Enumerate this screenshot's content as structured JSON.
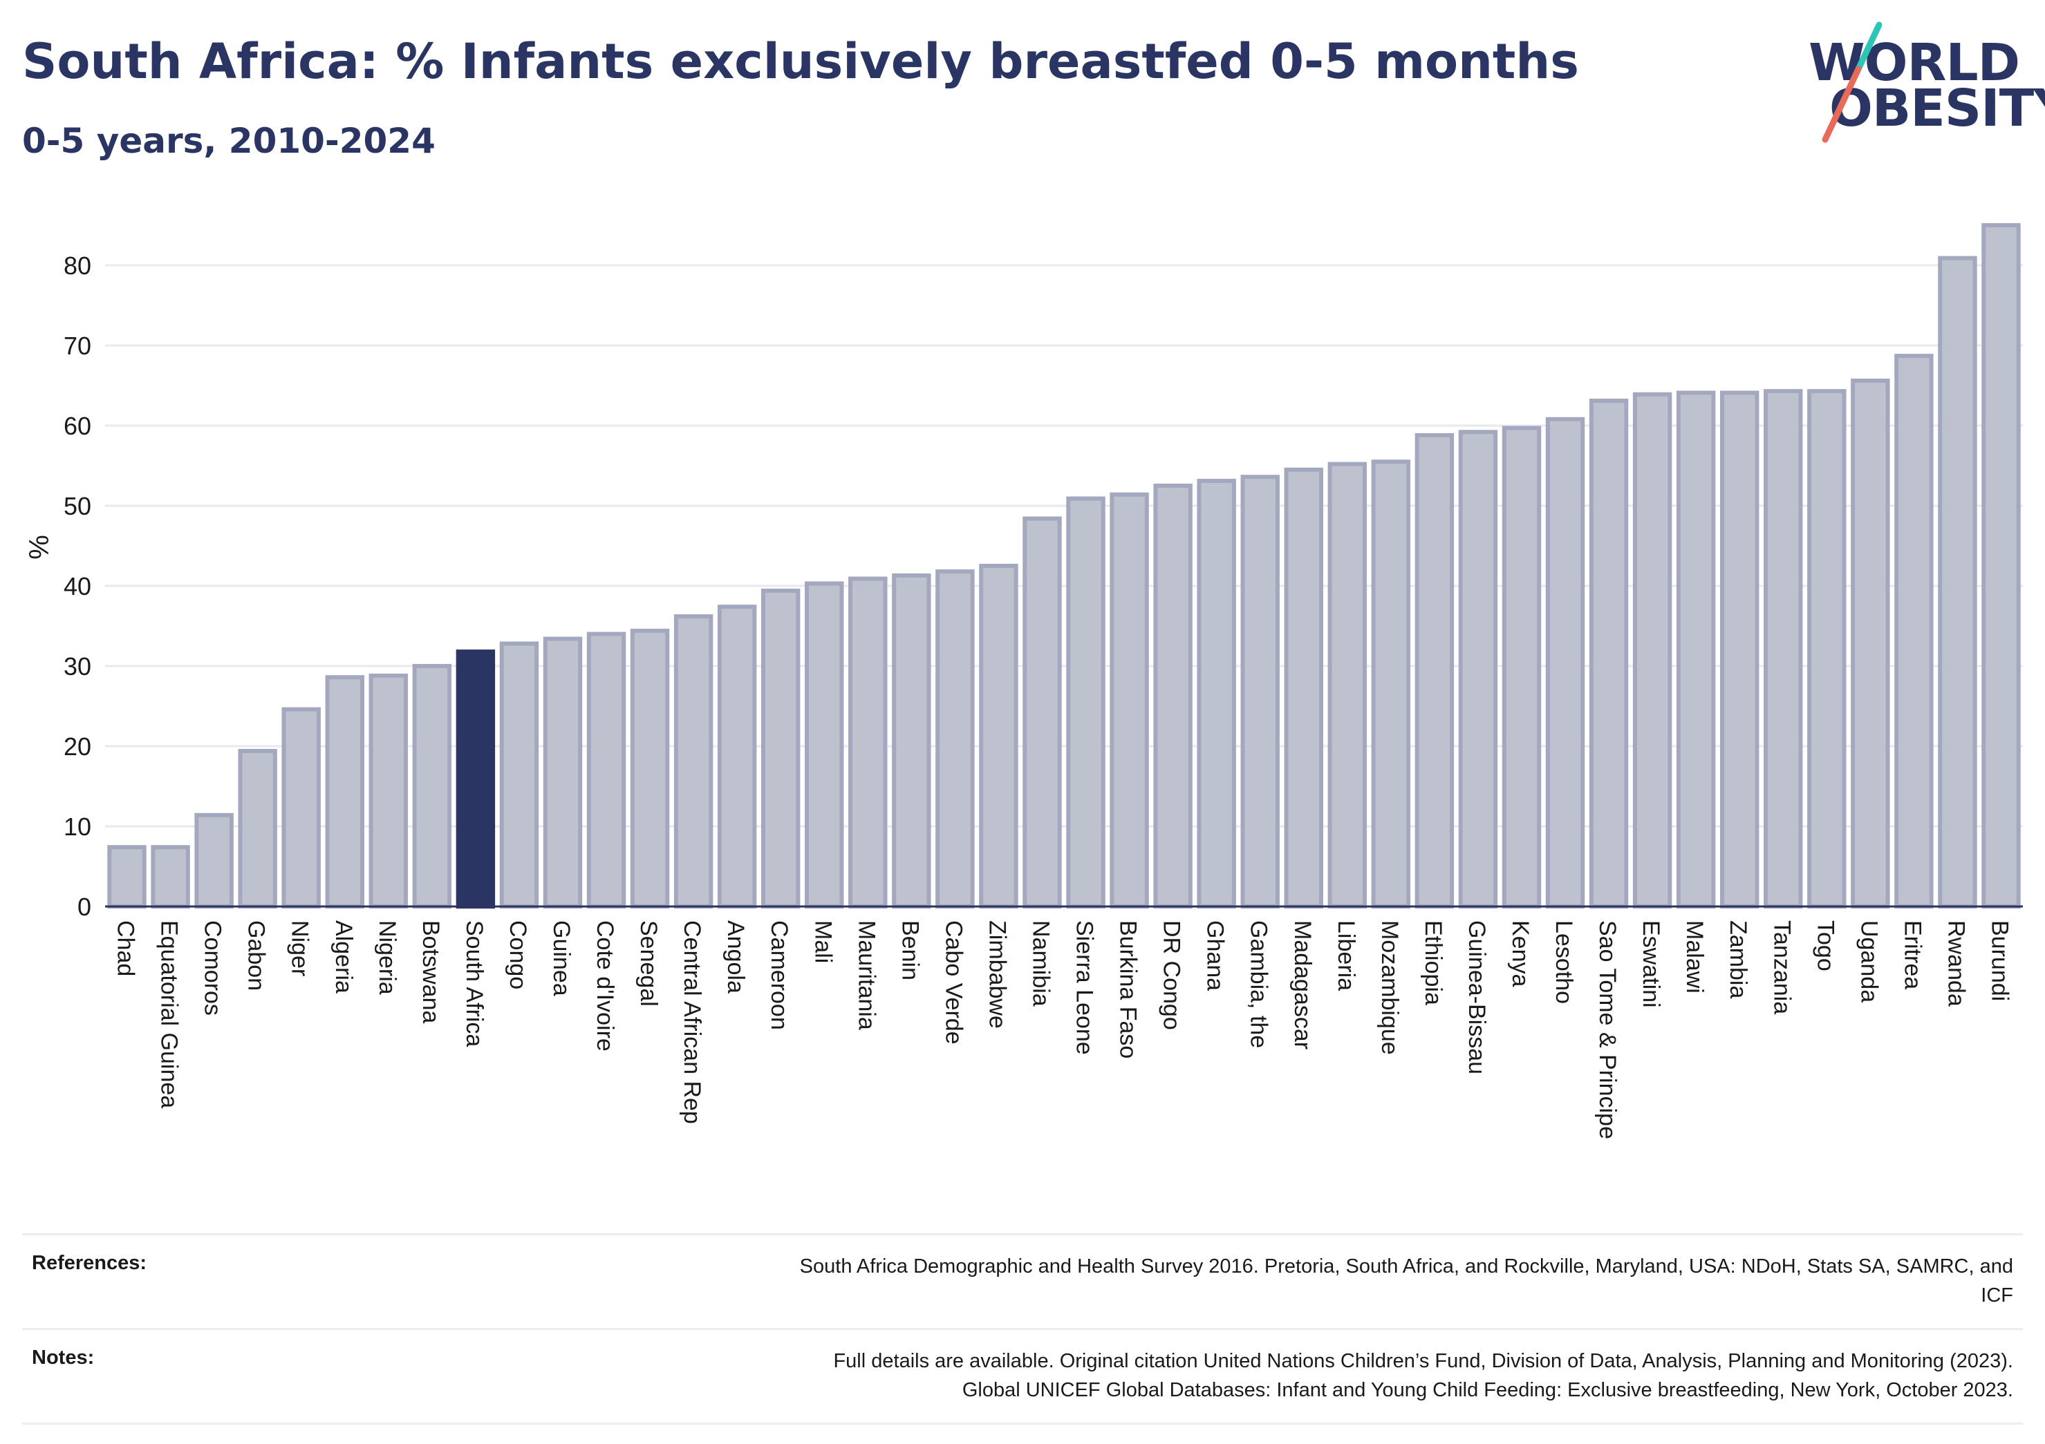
{
  "title": "South Africa: % Infants exclusively breastfed 0-5 months",
  "subtitle": "0-5 years, 2010-2024",
  "logo": {
    "line1": "WORLD",
    "line2": "OBESITY"
  },
  "colors": {
    "bar": "#bec2cf",
    "bar_border": "#a3a8bf",
    "highlight": "#2b3563",
    "text": "#2b3563",
    "logo_slash_top": "#2ec4b6",
    "logo_slash_bottom": "#e86a5a"
  },
  "chart_data": {
    "type": "bar",
    "ylabel": "%",
    "ylim": [
      0,
      87
    ],
    "yticks": [
      0,
      10,
      20,
      30,
      40,
      50,
      60,
      70,
      80
    ],
    "grid": true,
    "highlight": "South Africa",
    "categories": [
      "Chad",
      "Equatorial Guinea",
      "Comoros",
      "Gabon",
      "Niger",
      "Algeria",
      "Nigeria",
      "Botswana",
      "South Africa",
      "Congo",
      "Guinea",
      "Cote d'Ivoire",
      "Senegal",
      "Central African Rep",
      "Angola",
      "Cameroon",
      "Mali",
      "Mauritania",
      "Benin",
      "Cabo Verde",
      "Zimbabwe",
      "Namibia",
      "Sierra Leone",
      "Burkina Faso",
      "DR Congo",
      "Ghana",
      "Gambia, the",
      "Madagascar",
      "Liberia",
      "Mozambique",
      "Ethiopia",
      "Guinea-Bissau",
      "Kenya",
      "Lesotho",
      "Sao Tome & Principe",
      "Eswatini",
      "Malawi",
      "Zambia",
      "Tanzania",
      "Togo",
      "Uganda",
      "Eritrea",
      "Rwanda",
      "Burundi"
    ],
    "values": [
      7.4,
      7.4,
      11.4,
      19.4,
      24.6,
      28.6,
      28.8,
      30.0,
      31.8,
      32.8,
      33.4,
      34.0,
      34.4,
      36.2,
      37.4,
      39.4,
      40.3,
      40.9,
      41.3,
      41.8,
      42.5,
      48.4,
      50.9,
      51.4,
      52.5,
      53.1,
      53.6,
      54.5,
      55.2,
      55.5,
      58.8,
      59.2,
      59.7,
      60.8,
      63.1,
      63.9,
      64.1,
      64.1,
      64.3,
      64.3,
      65.6,
      68.7,
      80.9,
      85.0
    ]
  },
  "footer": {
    "references_label": "References:",
    "references_line1": "South Africa Demographic and Health Survey 2016. Pretoria, South Africa, and Rockville, Maryland, USA: NDoH, Stats SA, SAMRC, and",
    "references_line2": "ICF",
    "notes_label": "Notes:",
    "notes_line1": "Full details are available. Original citation United Nations Children’s Fund, Division of Data, Analysis, Planning and Monitoring (2023).",
    "notes_line2": "Global UNICEF Global Databases: Infant and Young Child Feeding: Exclusive breastfeeding, New York, October 2023."
  }
}
